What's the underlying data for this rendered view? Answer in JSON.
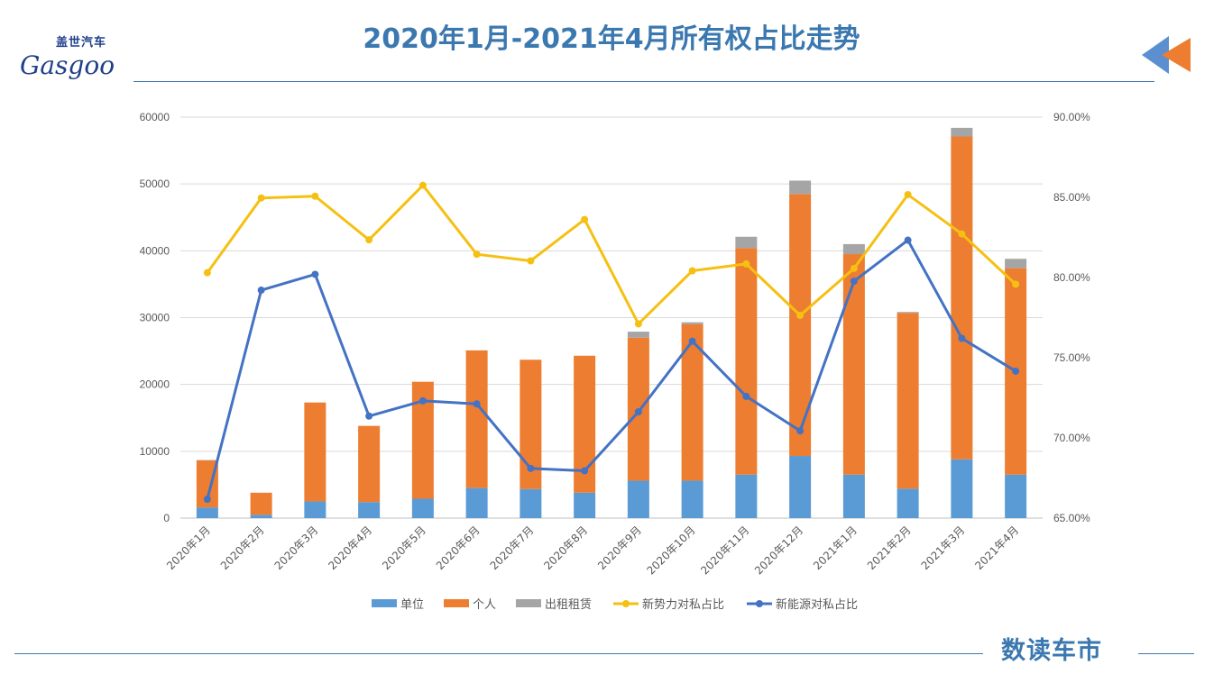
{
  "header": {
    "logo_cn": "盖世汽车",
    "logo_en": "Gasgoo",
    "title": "2020年1月-2021年4月所有权占比走势",
    "back_icon": "back-arrow-icon"
  },
  "footer": {
    "brand": "数读车市"
  },
  "chart_data": {
    "type": "bar",
    "stacked": true,
    "title": "",
    "categories": [
      "2020年1月",
      "2020年2月",
      "2020年3月",
      "2020年4月",
      "2020年5月",
      "2020年6月",
      "2020年7月",
      "2020年8月",
      "2020年9月",
      "2020年10月",
      "2020年11月",
      "2020年12月",
      "2021年1月",
      "2021年2月",
      "2021年3月",
      "2021年4月"
    ],
    "y_left": {
      "min": 0,
      "max": 60000,
      "ticks": [
        "0",
        "10000",
        "20000",
        "30000",
        "40000",
        "50000",
        "60000"
      ]
    },
    "y_right": {
      "min": 65,
      "max": 90,
      "ticks": [
        "65.00%",
        "70.00%",
        "75.00%",
        "80.00%",
        "85.00%",
        "90.00%"
      ]
    },
    "grid": true,
    "legend_position": "bottom",
    "series": [
      {
        "name": "单位",
        "type": "bar",
        "axis": "left",
        "color": "#5b9bd5",
        "values": [
          1600,
          500,
          2500,
          2400,
          2900,
          4500,
          4350,
          3800,
          5600,
          5600,
          6500,
          9300,
          6500,
          4400,
          8800,
          6500
        ]
      },
      {
        "name": "个人",
        "type": "bar",
        "axis": "left",
        "color": "#ed7d31",
        "values": [
          7050,
          3300,
          14800,
          11400,
          17500,
          20600,
          19350,
          20500,
          21400,
          23400,
          33900,
          39200,
          33000,
          26300,
          48300,
          30900
        ]
      },
      {
        "name": "出租租赁",
        "type": "bar",
        "axis": "left",
        "color": "#a5a5a5",
        "values": [
          50,
          0,
          0,
          0,
          0,
          0,
          0,
          0,
          900,
          300,
          1700,
          2000,
          1500,
          150,
          1300,
          1400
        ]
      },
      {
        "name": "新势力对私占比",
        "type": "line",
        "axis": "right",
        "color": "#f5c012",
        "unit": "%",
        "values": [
          80.3,
          84.96,
          85.07,
          82.35,
          85.75,
          81.45,
          81.04,
          83.62,
          77.11,
          80.42,
          80.85,
          77.64,
          80.57,
          85.17,
          82.72,
          79.58
        ]
      },
      {
        "name": "新能源对私占比",
        "type": "line",
        "axis": "right",
        "color": "#4472c4",
        "unit": "%",
        "values": [
          66.18,
          79.21,
          80.2,
          71.36,
          72.31,
          72.12,
          68.1,
          67.95,
          71.63,
          76.03,
          72.59,
          70.44,
          79.77,
          82.33,
          76.21,
          74.16
        ]
      }
    ]
  }
}
